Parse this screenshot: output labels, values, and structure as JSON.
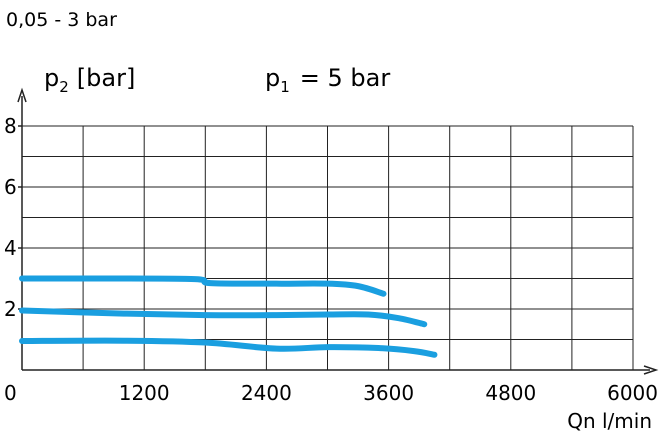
{
  "chart_data": {
    "type": "line",
    "title": "0,05 - 3 bar",
    "ylabel": {
      "symbol": "p",
      "subscript": "2",
      "unit": "[bar]"
    },
    "annotation": {
      "symbol": "p",
      "subscript": "1",
      "text": "= 5 bar"
    },
    "xlabel": "Qn l/min",
    "x_ticks": [
      0,
      1200,
      2400,
      3600,
      4800,
      6000
    ],
    "x_tick_labels": [
      "0",
      "1200",
      "2400",
      "3600",
      "4800",
      "6000"
    ],
    "y_ticks": [
      2,
      4,
      6,
      8
    ],
    "y_tick_labels": [
      "2",
      "4",
      "6",
      "8"
    ],
    "xlim": [
      0,
      6000
    ],
    "ylim": [
      0,
      8
    ],
    "grid": true,
    "line_color": "#1a9fe0",
    "series": [
      {
        "points": [
          [
            0,
            3.0
          ],
          [
            800,
            3.0
          ],
          [
            1700,
            2.98
          ],
          [
            1850,
            2.85
          ],
          [
            2500,
            2.83
          ],
          [
            3000,
            2.83
          ],
          [
            3300,
            2.75
          ],
          [
            3550,
            2.5
          ]
        ]
      },
      {
        "points": [
          [
            0,
            1.95
          ],
          [
            1000,
            1.85
          ],
          [
            1800,
            1.8
          ],
          [
            2500,
            1.8
          ],
          [
            3000,
            1.82
          ],
          [
            3400,
            1.82
          ],
          [
            3700,
            1.7
          ],
          [
            3950,
            1.5
          ]
        ]
      },
      {
        "points": [
          [
            0,
            0.95
          ],
          [
            1000,
            0.96
          ],
          [
            1800,
            0.9
          ],
          [
            2500,
            0.7
          ],
          [
            3000,
            0.75
          ],
          [
            3500,
            0.72
          ],
          [
            3850,
            0.62
          ],
          [
            4050,
            0.5
          ]
        ]
      }
    ]
  }
}
